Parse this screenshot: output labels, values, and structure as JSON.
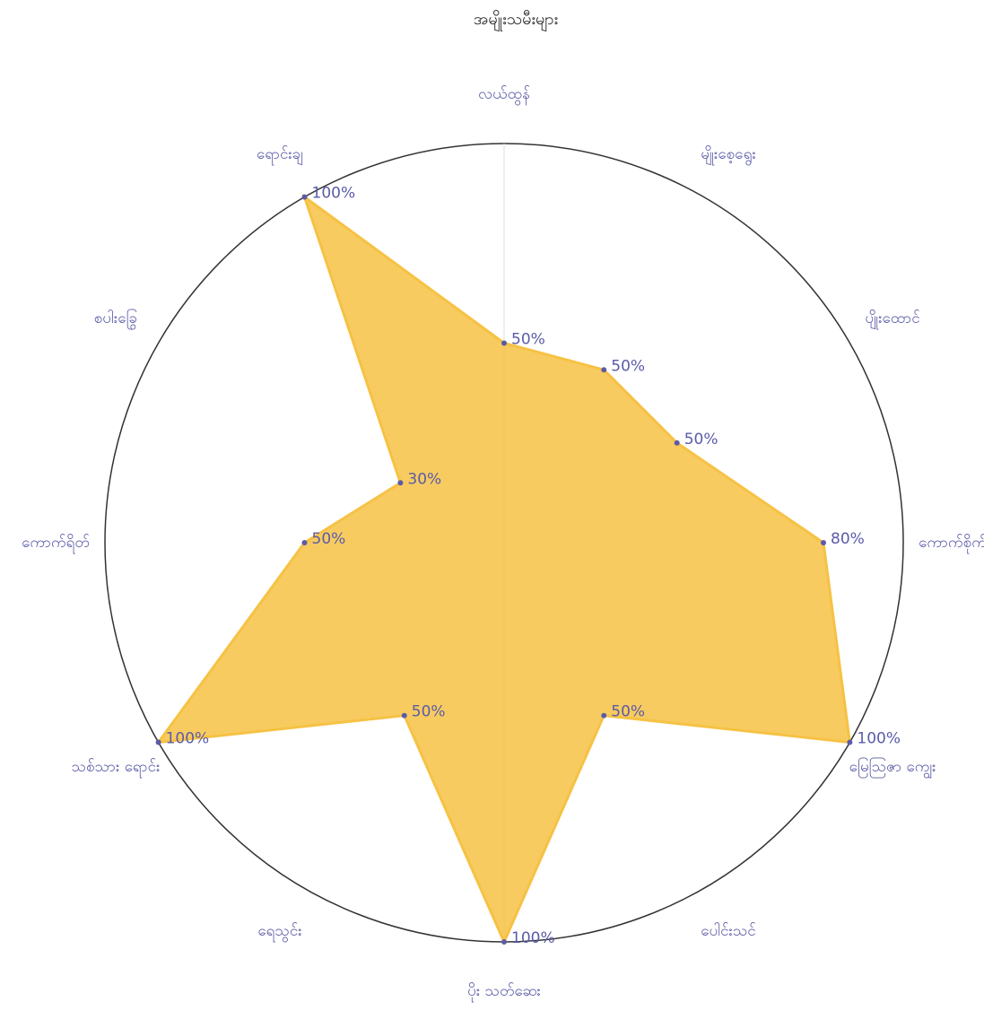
{
  "chart_data": {
    "type": "radar",
    "title": "အမျိုးသမီးများ",
    "categories": [
      "လယ်ထွန်",
      "မျိုးစေ့ရွေး",
      "ပျိုးထောင်",
      "ကောက်စိုက်",
      "မြေဩဇာ ကျွေး",
      "ပေါင်းသင်",
      "ပိုး သတ်ဆေး",
      "ရေသွင်း",
      "သစ်သား ရောင်း",
      "ကောက်ရိတ်",
      "စပါးခြွေ",
      "ရောင်းချ"
    ],
    "values": [
      50,
      50,
      50,
      80,
      100,
      50,
      100,
      50,
      100,
      50,
      30,
      100
    ],
    "value_labels": [
      "50%",
      "50%",
      "50%",
      "80%",
      "100%",
      "50%",
      "100%",
      "50%",
      "100%",
      "50%",
      "30%",
      "100%"
    ],
    "ylim": [
      0,
      100
    ],
    "color": "#f6c244"
  }
}
